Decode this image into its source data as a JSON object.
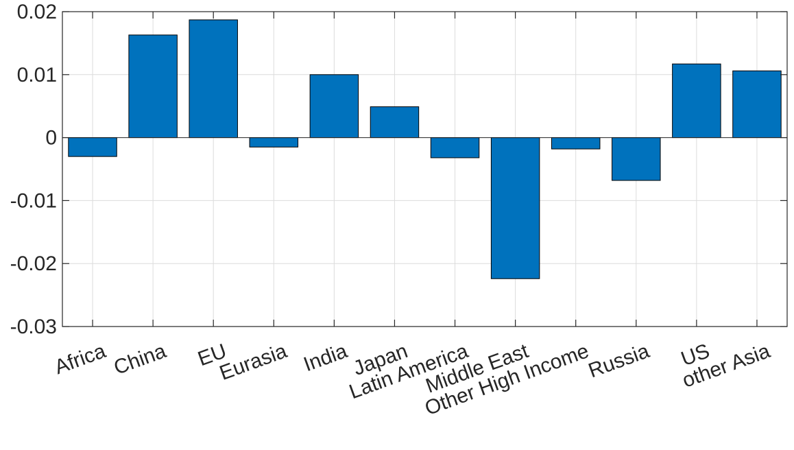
{
  "chart_data": {
    "type": "bar",
    "categories": [
      "Africa",
      "China",
      "EU",
      "Eurasia",
      "India",
      "Japan",
      "Latin America",
      "Middle East",
      "Other High Income",
      "Russia",
      "US",
      "other Asia"
    ],
    "values": [
      -0.003,
      0.0163,
      0.0187,
      -0.0015,
      0.01,
      0.0049,
      -0.0032,
      -0.0224,
      -0.0018,
      -0.0068,
      0.0117,
      0.0106
    ],
    "title": "",
    "xlabel": "",
    "ylabel": "",
    "ylim": [
      -0.03,
      0.02
    ],
    "yticks": [
      -0.03,
      -0.02,
      -0.01,
      0,
      0.01,
      0.02
    ],
    "ytick_labels": [
      "-0.03",
      "-0.02",
      "-0.01",
      "0",
      "0.01",
      "0.02"
    ],
    "grid": true,
    "bar_color": "#0072BD",
    "x_label_rotation_deg": -20
  }
}
